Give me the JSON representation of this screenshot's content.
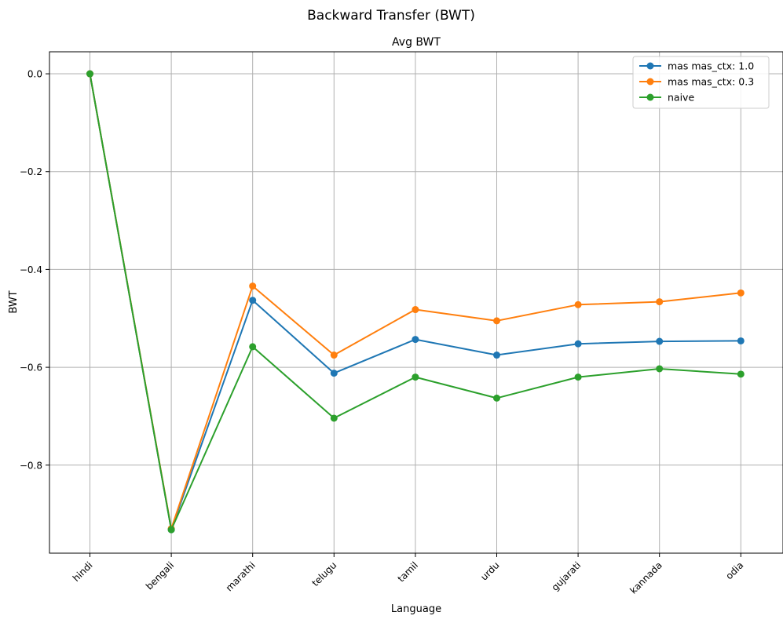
{
  "chart_data": {
    "type": "line",
    "suptitle": "Backward Transfer (BWT)",
    "title": "Avg BWT",
    "xlabel": "Language",
    "ylabel": "BWT",
    "categories": [
      "hindi",
      "bengali",
      "marathi",
      "telugu",
      "tamil",
      "urdu",
      "gujarati",
      "kannada",
      "odia"
    ],
    "ylim": [
      -0.98,
      0.045
    ],
    "yticks": [
      0.0,
      -0.2,
      -0.4,
      -0.6,
      -0.8
    ],
    "ytick_labels": [
      "0.0",
      "−0.2",
      "−0.4",
      "−0.6",
      "−0.8"
    ],
    "grid": true,
    "legend_position": "top-right",
    "series": [
      {
        "name": "mas mas_ctx: 1.0",
        "color": "#1f77b4",
        "values": [
          0.0,
          -0.932,
          -0.463,
          -0.612,
          -0.543,
          -0.575,
          -0.552,
          -0.547,
          -0.546
        ]
      },
      {
        "name": "mas mas_ctx: 0.3",
        "color": "#ff7f0e",
        "values": [
          0.0,
          -0.93,
          -0.434,
          -0.575,
          -0.482,
          -0.505,
          -0.472,
          -0.466,
          -0.448
        ]
      },
      {
        "name": "naive",
        "color": "#2ca02c",
        "values": [
          0.0,
          -0.932,
          -0.558,
          -0.704,
          -0.62,
          -0.663,
          -0.62,
          -0.603,
          -0.614
        ]
      }
    ]
  }
}
